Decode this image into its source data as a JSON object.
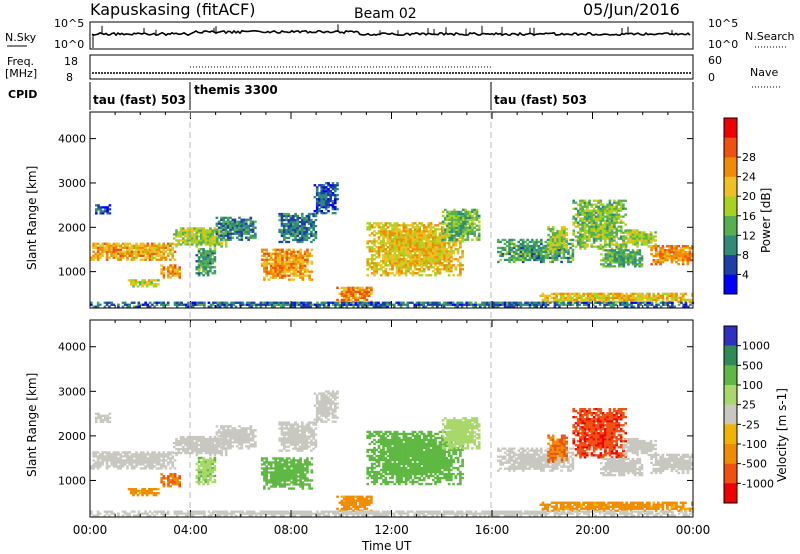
{
  "header": {
    "station": "Kapuskasing (fitACF)",
    "beam": "Beam 02",
    "date": "05/Jun/2016"
  },
  "noise_panel": {
    "left_label": "N.Sky",
    "right_label": "N.Search",
    "left_ticks": [
      "10^5",
      "10^0"
    ],
    "right_ticks": [
      "10^5",
      "10^0"
    ]
  },
  "freq_panel": {
    "left_label_line1": "Freq.",
    "left_label_line2": "[MHz]",
    "right_label": "Nave",
    "left_ticks": [
      "18",
      "8"
    ],
    "right_ticks": [
      "60",
      "0"
    ]
  },
  "cpid_panel": {
    "label": "CPID",
    "segments": [
      {
        "label": "tau (fast) 503",
        "start_hour": 0
      },
      {
        "label": "themis 3300",
        "start_hour": 4
      },
      {
        "label": "tau (fast) 503",
        "start_hour": 16
      }
    ]
  },
  "colors": {
    "power": [
      "#0000ff",
      "#1e3fa8",
      "#2f8a78",
      "#56b050",
      "#a8d21e",
      "#f0c020",
      "#f08c00",
      "#f05010",
      "#f00000"
    ],
    "velocity": [
      "#3030c0",
      "#2e8b57",
      "#5fb842",
      "#a8d86a",
      "#c8c8c0",
      "#f0b400",
      "#f08c00",
      "#f05010",
      "#f00000"
    ],
    "ground_scatter": "#c8c8c0"
  },
  "chart_data": [
    {
      "type": "heatmap",
      "name": "power",
      "ylabel": "Slant Range [km]",
      "xlabel": "Time UT",
      "x_ticks": [
        "00:00",
        "04:00",
        "08:00",
        "12:00",
        "16:00",
        "20:00",
        "00:00"
      ],
      "xlim_hours": [
        0,
        24
      ],
      "ylim_km": [
        180,
        4600
      ],
      "y_ticks": [
        1000,
        2000,
        3000,
        4000
      ],
      "colorbar": {
        "label": "Power [dB]",
        "ticks": [
          4,
          8,
          12,
          16,
          20,
          24,
          28
        ],
        "range": [
          0,
          30
        ]
      },
      "echo_regions": [
        {
          "t0": 0.0,
          "t1": 3.4,
          "r0": 1250,
          "r1": 1650,
          "level": 24
        },
        {
          "t0": 0.2,
          "t1": 0.8,
          "r0": 2250,
          "r1": 2500,
          "level": 7
        },
        {
          "t0": 1.5,
          "t1": 2.7,
          "r0": 650,
          "r1": 800,
          "level": 20
        },
        {
          "t0": 2.8,
          "t1": 3.6,
          "r0": 850,
          "r1": 1150,
          "level": 26
        },
        {
          "t0": 3.3,
          "t1": 5.4,
          "r0": 1550,
          "r1": 2000,
          "level": 18
        },
        {
          "t0": 4.2,
          "t1": 5.0,
          "r0": 900,
          "r1": 1500,
          "level": 12
        },
        {
          "t0": 5.0,
          "t1": 6.6,
          "r0": 1700,
          "r1": 2200,
          "level": 10
        },
        {
          "t0": 6.8,
          "t1": 8.8,
          "r0": 800,
          "r1": 1500,
          "level": 25
        },
        {
          "t0": 7.5,
          "t1": 9.0,
          "r0": 1650,
          "r1": 2300,
          "level": 9
        },
        {
          "t0": 8.9,
          "t1": 9.8,
          "r0": 2300,
          "r1": 3000,
          "level": 7
        },
        {
          "t0": 9.8,
          "t1": 11.2,
          "r0": 300,
          "r1": 650,
          "level": 26
        },
        {
          "t0": 11.0,
          "t1": 14.8,
          "r0": 900,
          "r1": 2100,
          "level": 22
        },
        {
          "t0": 14.0,
          "t1": 15.5,
          "r0": 1700,
          "r1": 2400,
          "level": 15
        },
        {
          "t0": 16.2,
          "t1": 19.2,
          "r0": 1200,
          "r1": 1700,
          "level": 12
        },
        {
          "t0": 18.2,
          "t1": 19.0,
          "r0": 1400,
          "r1": 2000,
          "level": 18
        },
        {
          "t0": 19.2,
          "t1": 21.3,
          "r0": 1500,
          "r1": 2600,
          "level": 16
        },
        {
          "t0": 20.3,
          "t1": 22.0,
          "r0": 1100,
          "r1": 1500,
          "level": 13
        },
        {
          "t0": 21.2,
          "t1": 22.5,
          "r0": 1550,
          "r1": 1950,
          "level": 18
        },
        {
          "t0": 22.3,
          "t1": 24.0,
          "r0": 1150,
          "r1": 1600,
          "level": 26
        },
        {
          "t0": 17.8,
          "t1": 24.0,
          "r0": 300,
          "r1": 520,
          "level": 22
        },
        {
          "t0": 0.0,
          "t1": 24.0,
          "r0": 190,
          "r1": 300,
          "level": 8
        }
      ]
    },
    {
      "type": "heatmap",
      "name": "velocity",
      "ylabel": "Slant Range [km]",
      "xlabel": "Time UT",
      "x_ticks": [
        "00:00",
        "04:00",
        "08:00",
        "12:00",
        "16:00",
        "20:00",
        "00:00"
      ],
      "xlim_hours": [
        0,
        24
      ],
      "ylim_km": [
        180,
        4600
      ],
      "y_ticks": [
        1000,
        2000,
        3000,
        4000
      ],
      "colorbar": {
        "label": "Velocity [m s-1]",
        "ticks": [
          1000,
          500,
          100,
          25,
          -25,
          -100,
          -500,
          -1000
        ]
      },
      "echo_regions": [
        {
          "t0": 0.0,
          "t1": 3.4,
          "r0": 1250,
          "r1": 1650,
          "level": 0
        },
        {
          "t0": 0.2,
          "t1": 0.8,
          "r0": 2250,
          "r1": 2500,
          "level": 0
        },
        {
          "t0": 1.5,
          "t1": 2.7,
          "r0": 650,
          "r1": 800,
          "level": -150
        },
        {
          "t0": 2.8,
          "t1": 3.6,
          "r0": 850,
          "r1": 1150,
          "level": -300
        },
        {
          "t0": 3.3,
          "t1": 5.4,
          "r0": 1550,
          "r1": 2000,
          "level": 0
        },
        {
          "t0": 4.2,
          "t1": 5.0,
          "r0": 900,
          "r1": 1500,
          "level": 80
        },
        {
          "t0": 5.0,
          "t1": 6.6,
          "r0": 1700,
          "r1": 2200,
          "level": 0
        },
        {
          "t0": 6.8,
          "t1": 8.8,
          "r0": 800,
          "r1": 1500,
          "level": 200
        },
        {
          "t0": 7.5,
          "t1": 9.0,
          "r0": 1650,
          "r1": 2300,
          "level": 0
        },
        {
          "t0": 8.9,
          "t1": 9.8,
          "r0": 2300,
          "r1": 3000,
          "level": 0
        },
        {
          "t0": 9.8,
          "t1": 11.2,
          "r0": 300,
          "r1": 650,
          "level": -150
        },
        {
          "t0": 11.0,
          "t1": 14.8,
          "r0": 900,
          "r1": 2100,
          "level": 200
        },
        {
          "t0": 14.0,
          "t1": 15.5,
          "r0": 1700,
          "r1": 2400,
          "level": 60
        },
        {
          "t0": 16.2,
          "t1": 19.2,
          "r0": 1200,
          "r1": 1700,
          "level": 0
        },
        {
          "t0": 18.2,
          "t1": 19.0,
          "r0": 1400,
          "r1": 2000,
          "level": -300
        },
        {
          "t0": 19.2,
          "t1": 21.3,
          "r0": 1500,
          "r1": 2600,
          "level": -600
        },
        {
          "t0": 20.3,
          "t1": 22.0,
          "r0": 1100,
          "r1": 1500,
          "level": 0
        },
        {
          "t0": 21.2,
          "t1": 22.5,
          "r0": 1550,
          "r1": 1950,
          "level": 0
        },
        {
          "t0": 22.3,
          "t1": 24.0,
          "r0": 1150,
          "r1": 1600,
          "level": 0
        },
        {
          "t0": 17.8,
          "t1": 24.0,
          "r0": 300,
          "r1": 520,
          "level": -150
        },
        {
          "t0": 0.0,
          "t1": 24.0,
          "r0": 190,
          "r1": 300,
          "level": 0
        }
      ]
    }
  ]
}
